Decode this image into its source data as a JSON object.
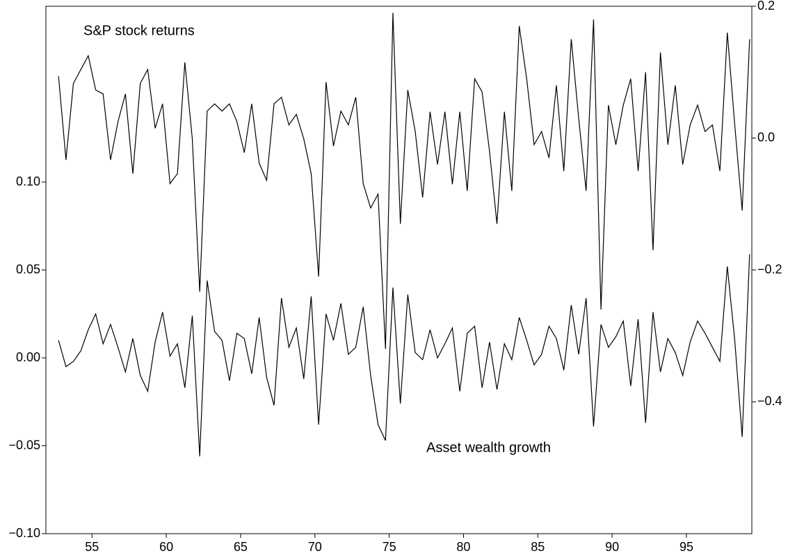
{
  "chart_data": {
    "type": "line",
    "x": [
      52.75,
      53.25,
      53.75,
      54.25,
      54.75,
      55.25,
      55.75,
      56.25,
      56.75,
      57.25,
      57.75,
      58.25,
      58.75,
      59.25,
      59.75,
      60.25,
      60.75,
      61.25,
      61.75,
      62.25,
      62.75,
      63.25,
      63.75,
      64.25,
      64.75,
      65.25,
      65.75,
      66.25,
      66.75,
      67.25,
      67.75,
      68.25,
      68.75,
      69.25,
      69.75,
      70.25,
      70.75,
      71.25,
      71.75,
      72.25,
      72.75,
      73.25,
      73.75,
      74.25,
      74.75,
      75.25,
      75.75,
      76.25,
      76.75,
      77.25,
      77.75,
      78.25,
      78.75,
      79.25,
      79.75,
      80.25,
      80.75,
      81.25,
      81.75,
      82.25,
      82.75,
      83.25,
      83.75,
      84.25,
      84.75,
      85.25,
      85.75,
      86.25,
      86.75,
      87.25,
      87.75,
      88.25,
      88.75,
      89.25,
      89.75,
      90.25,
      90.75,
      91.25,
      91.75,
      92.25,
      92.75,
      93.25,
      93.75,
      94.25,
      94.75,
      95.25,
      95.75,
      96.25,
      96.75,
      97.25,
      97.75,
      98.25,
      98.75,
      99.25
    ],
    "series": [
      {
        "name": "S&P stock returns",
        "color": "#000000",
        "axis": "y2",
        "values": [
          0.094,
          -0.033,
          0.083,
          0.104,
          0.125,
          0.073,
          0.067,
          -0.033,
          0.025,
          0.067,
          -0.054,
          0.083,
          0.104,
          0.015,
          0.052,
          -0.069,
          -0.054,
          0.115,
          -0.001,
          -0.233,
          0.041,
          0.052,
          0.041,
          0.052,
          0.025,
          -0.022,
          0.052,
          -0.038,
          -0.064,
          0.052,
          0.062,
          0.02,
          0.036,
          -0.001,
          -0.054,
          -0.21,
          0.085,
          -0.012,
          0.041,
          0.02,
          0.062,
          -0.069,
          -0.106,
          -0.085,
          -0.32,
          0.19,
          -0.13,
          0.073,
          0.01,
          -0.09,
          0.04,
          -0.04,
          0.04,
          -0.07,
          0.04,
          -0.08,
          0.09,
          0.07,
          -0.02,
          -0.13,
          0.04,
          -0.08,
          0.17,
          0.09,
          -0.01,
          0.01,
          -0.03,
          0.08,
          -0.05,
          0.15,
          0.03,
          -0.08,
          0.18,
          -0.26,
          0.05,
          -0.01,
          0.05,
          0.09,
          -0.05,
          0.1,
          -0.17,
          0.13,
          -0.01,
          0.08,
          -0.04,
          0.02,
          0.05,
          0.01,
          0.02,
          -0.05,
          0.16,
          0.02,
          -0.11,
          0.15
        ]
      },
      {
        "name": "Asset wealth growth",
        "color": "#000000",
        "values": [
          0.01,
          -0.005,
          -0.002,
          0.004,
          0.016,
          0.025,
          0.008,
          0.019,
          0.006,
          -0.008,
          0.011,
          -0.01,
          -0.019,
          0.009,
          0.026,
          0.001,
          0.008,
          -0.017,
          0.024,
          -0.056,
          0.044,
          0.015,
          0.01,
          -0.013,
          0.014,
          0.011,
          -0.009,
          0.023,
          -0.011,
          -0.027,
          0.034,
          0.006,
          0.017,
          -0.012,
          0.035,
          -0.038,
          0.025,
          0.01,
          0.031,
          0.002,
          0.006,
          0.029,
          -0.01,
          -0.038,
          -0.047,
          0.04,
          -0.026,
          0.036,
          0.003,
          -0.001,
          0.016,
          0.0,
          0.008,
          0.017,
          -0.019,
          0.014,
          0.018,
          -0.017,
          0.009,
          -0.018,
          0.008,
          -0.001,
          0.023,
          0.01,
          -0.004,
          0.002,
          0.018,
          0.011,
          -0.007,
          0.03,
          0.002,
          0.034,
          -0.039,
          0.019,
          0.006,
          0.012,
          0.021,
          -0.016,
          0.022,
          -0.037,
          0.026,
          -0.008,
          0.011,
          0.003,
          -0.01,
          0.009,
          0.021,
          0.014,
          0.006,
          -0.002,
          0.052,
          0.01,
          -0.045,
          0.059
        ]
      }
    ],
    "xlim": [
      51.9,
      99.4
    ],
    "xticks": [
      55,
      60,
      65,
      70,
      75,
      80,
      85,
      90,
      95
    ],
    "ylim": [
      -0.1,
      0.2
    ],
    "yticks": [
      {
        "value": 0.1,
        "label": "0.10"
      },
      {
        "value": 0.05,
        "label": "0.05"
      },
      {
        "value": 0,
        "label": "0.00"
      },
      {
        "value": -0.05,
        "label": "−0.05"
      },
      {
        "value": -0.1,
        "label": "−0.10"
      }
    ],
    "y2lim": [
      -0.6,
      0.2
    ],
    "y2ticks": [
      0.2,
      {
        "value": 0,
        "label": "0.0"
      },
      {
        "value": -0.2,
        "label": "−0.2"
      },
      {
        "value": -0.4,
        "label": "−0.4"
      }
    ],
    "grid": false
  }
}
